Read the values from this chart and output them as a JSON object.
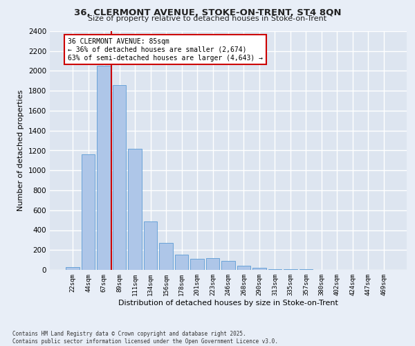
{
  "title1": "36, CLERMONT AVENUE, STOKE-ON-TRENT, ST4 8QN",
  "title2": "Size of property relative to detached houses in Stoke-on-Trent",
  "xlabel": "Distribution of detached houses by size in Stoke-on-Trent",
  "ylabel": "Number of detached properties",
  "categories": [
    "22sqm",
    "44sqm",
    "67sqm",
    "89sqm",
    "111sqm",
    "134sqm",
    "156sqm",
    "178sqm",
    "201sqm",
    "223sqm",
    "246sqm",
    "268sqm",
    "290sqm",
    "313sqm",
    "335sqm",
    "357sqm",
    "380sqm",
    "402sqm",
    "424sqm",
    "447sqm",
    "469sqm"
  ],
  "values": [
    30,
    1160,
    2050,
    1860,
    1220,
    490,
    270,
    150,
    110,
    115,
    90,
    45,
    20,
    10,
    5,
    5,
    3,
    3,
    2,
    2,
    2
  ],
  "bar_color": "#aec6e8",
  "bar_edge_color": "#5b9bd5",
  "vline_color": "#cc0000",
  "annotation_text": "36 CLERMONT AVENUE: 85sqm\n← 36% of detached houses are smaller (2,674)\n63% of semi-detached houses are larger (4,643) →",
  "annotation_box_color": "#ffffff",
  "annotation_box_edge": "#cc0000",
  "bg_color": "#dde5f0",
  "grid_color": "#ffffff",
  "fig_bg_color": "#e8eef7",
  "footer1": "Contains HM Land Registry data © Crown copyright and database right 2025.",
  "footer2": "Contains public sector information licensed under the Open Government Licence v3.0.",
  "ylim": [
    0,
    2400
  ],
  "yticks": [
    0,
    200,
    400,
    600,
    800,
    1000,
    1200,
    1400,
    1600,
    1800,
    2000,
    2200,
    2400
  ]
}
